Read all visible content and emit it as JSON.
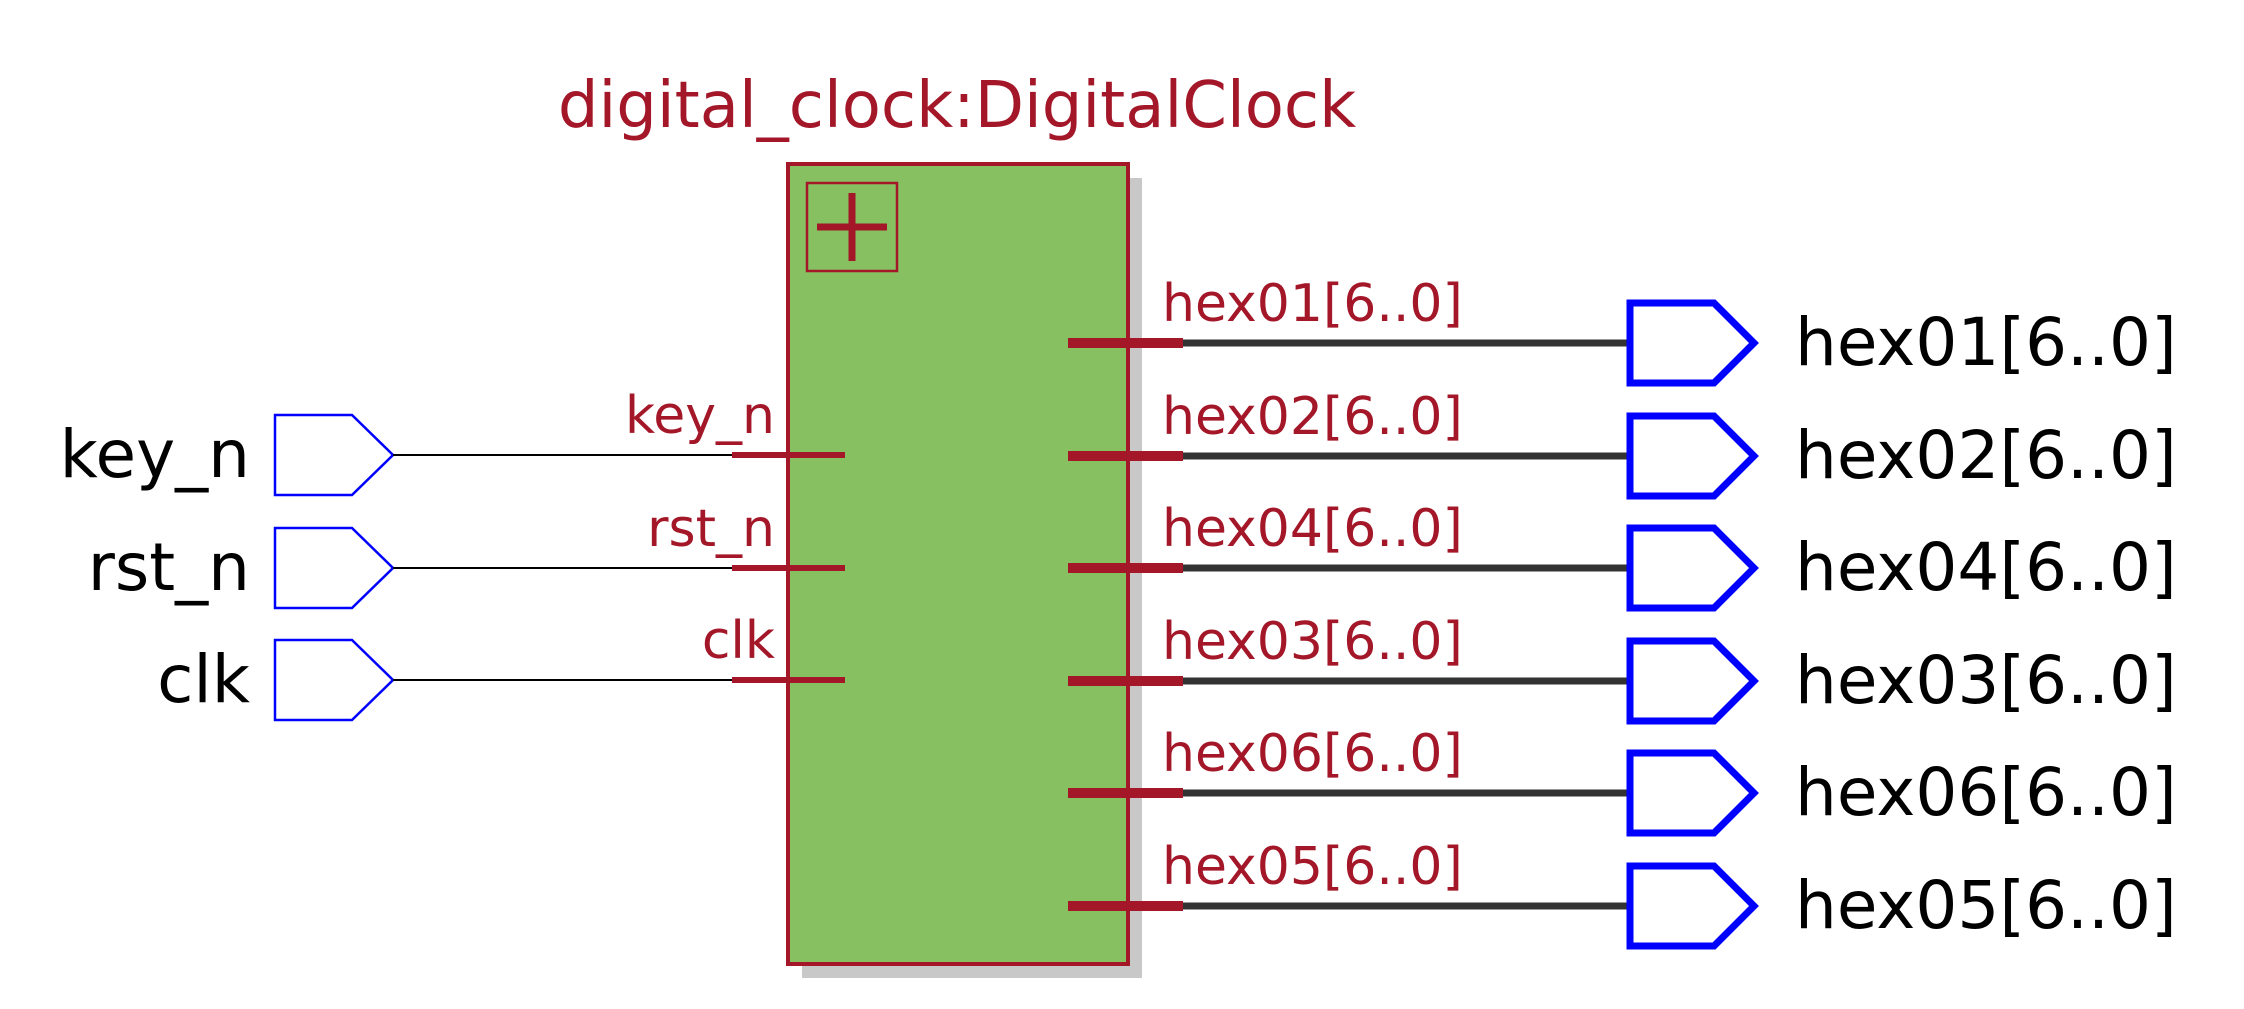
{
  "module": {
    "title": "digital_clock:DigitalClock",
    "expand_glyph": "+"
  },
  "inputs": [
    {
      "name": "key_n",
      "port": "key_n"
    },
    {
      "name": "rst_n",
      "port": "rst_n"
    },
    {
      "name": "clk",
      "port": "clk"
    }
  ],
  "outputs": [
    {
      "name": "hex01[6..0]",
      "port": "hex01[6..0]"
    },
    {
      "name": "hex02[6..0]",
      "port": "hex02[6..0]"
    },
    {
      "name": "hex04[6..0]",
      "port": "hex04[6..0]"
    },
    {
      "name": "hex03[6..0]",
      "port": "hex03[6..0]"
    },
    {
      "name": "hex06[6..0]",
      "port": "hex06[6..0]"
    },
    {
      "name": "hex05[6..0]",
      "port": "hex05[6..0]"
    }
  ],
  "colors": {
    "module_fill": "#86c060",
    "module_border": "#a31729",
    "label_red": "#a31729",
    "pin_blue": "#0000ff",
    "bus_wire": "#333333",
    "single_wire": "#000000",
    "shadow": "#c8c8c8",
    "text_black": "#000000"
  }
}
